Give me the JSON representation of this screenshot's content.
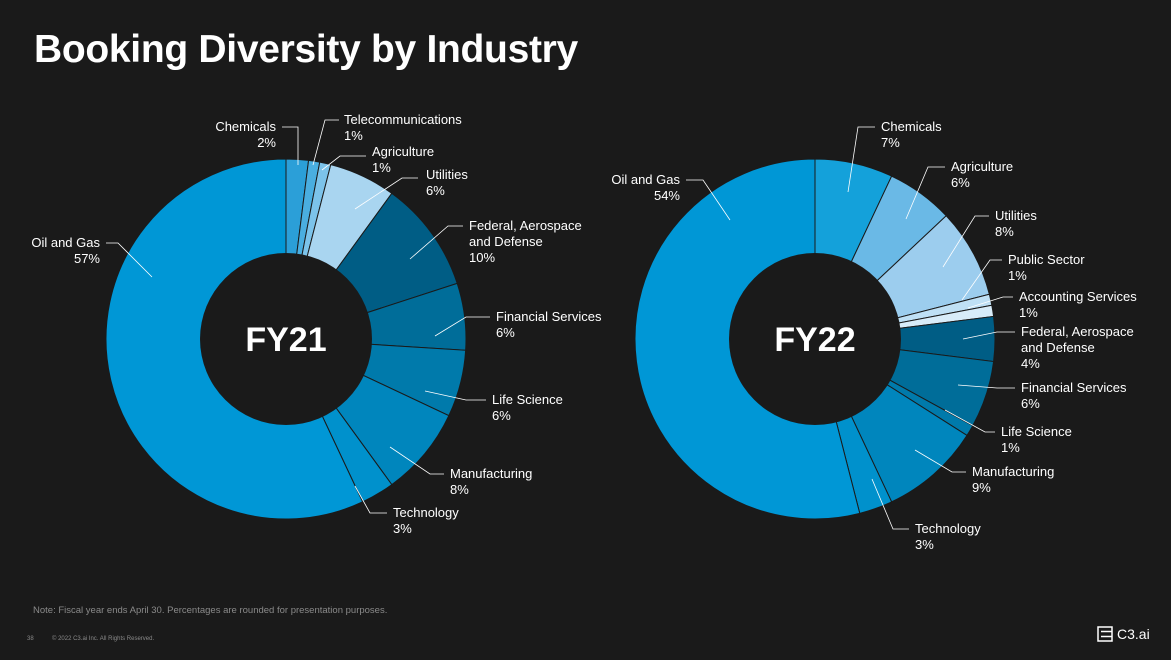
{
  "slide": {
    "title": "Booking Diversity by Industry",
    "note": "Note: Fiscal year ends April 30. Percentages are rounded for presentation purposes.",
    "page_number": "38",
    "copyright": "© 2022 C3.ai Inc. All Rights Reserved.",
    "logo_text": "C3.ai"
  },
  "colors": {
    "background": "#1a1a1a",
    "hole": "#1a1a1a",
    "separator": "#1a1a1a",
    "leader": "#ffffff"
  },
  "chart_data": [
    {
      "type": "pie",
      "center_label": "FY21",
      "title": "",
      "slices": [
        {
          "label": "Chemicals",
          "pct_label": "2%",
          "value": 2,
          "color": "#2b9fd8"
        },
        {
          "label": "Telecommunications",
          "pct_label": "1%",
          "value": 1,
          "color": "#4aaee0"
        },
        {
          "label": "Agriculture",
          "pct_label": "1%",
          "value": 1,
          "color": "#7cc3ea"
        },
        {
          "label": "Utilities",
          "pct_label": "6%",
          "value": 6,
          "color": "#a9d5f0"
        },
        {
          "label": "Federal, Aerospace and Defense",
          "pct_label": "10%",
          "value": 10,
          "color": "#005d85"
        },
        {
          "label": "Financial Services",
          "pct_label": "6%",
          "value": 6,
          "color": "#006d99"
        },
        {
          "label": "Life Science",
          "pct_label": "6%",
          "value": 6,
          "color": "#007aab"
        },
        {
          "label": "Manufacturing",
          "pct_label": "8%",
          "value": 8,
          "color": "#0086bd"
        },
        {
          "label": "Technology",
          "pct_label": "3%",
          "value": 3,
          "color": "#0091cc"
        },
        {
          "label": "Oil and Gas",
          "pct_label": "57%",
          "value": 57,
          "color": "#0097d6"
        }
      ]
    },
    {
      "type": "pie",
      "center_label": "FY22",
      "title": "",
      "slices": [
        {
          "label": "Chemicals",
          "pct_label": "7%",
          "value": 7,
          "color": "#14a1da"
        },
        {
          "label": "Agriculture",
          "pct_label": "6%",
          "value": 6,
          "color": "#6ab9e6"
        },
        {
          "label": "Utilities",
          "pct_label": "8%",
          "value": 8,
          "color": "#9ccdee"
        },
        {
          "label": "Public Sector",
          "pct_label": "1%",
          "value": 1,
          "color": "#bfe0f5"
        },
        {
          "label": "Accounting Services",
          "pct_label": "1%",
          "value": 1,
          "color": "#d8ecf9"
        },
        {
          "label": "Federal, Aerospace and Defense",
          "pct_label": "4%",
          "value": 4,
          "color": "#005d85"
        },
        {
          "label": "Financial Services",
          "pct_label": "6%",
          "value": 6,
          "color": "#006d99"
        },
        {
          "label": "Life Science",
          "pct_label": "1%",
          "value": 1,
          "color": "#007aab"
        },
        {
          "label": "Manufacturing",
          "pct_label": "9%",
          "value": 9,
          "color": "#0086bd"
        },
        {
          "label": "Technology",
          "pct_label": "3%",
          "value": 3,
          "color": "#0091cc"
        },
        {
          "label": "Oil and Gas",
          "pct_label": "54%",
          "value": 54,
          "color": "#0097d6"
        }
      ]
    }
  ]
}
